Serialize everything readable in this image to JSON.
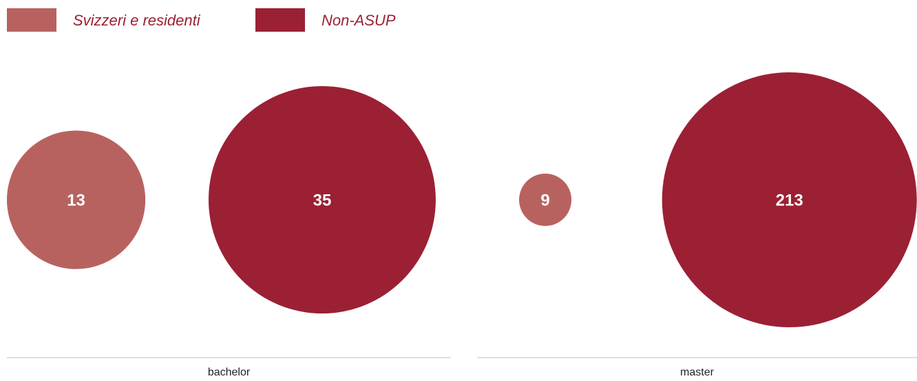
{
  "chart_data": {
    "type": "bubble",
    "categories": [
      "bachelor",
      "master"
    ],
    "series": [
      {
        "name": "Svizzeri e residenti",
        "color": "#b86260",
        "values": [
          13,
          9
        ]
      },
      {
        "name": "Non-ASUP",
        "color": "#9b2034",
        "values": [
          35,
          213
        ]
      }
    ]
  }
}
